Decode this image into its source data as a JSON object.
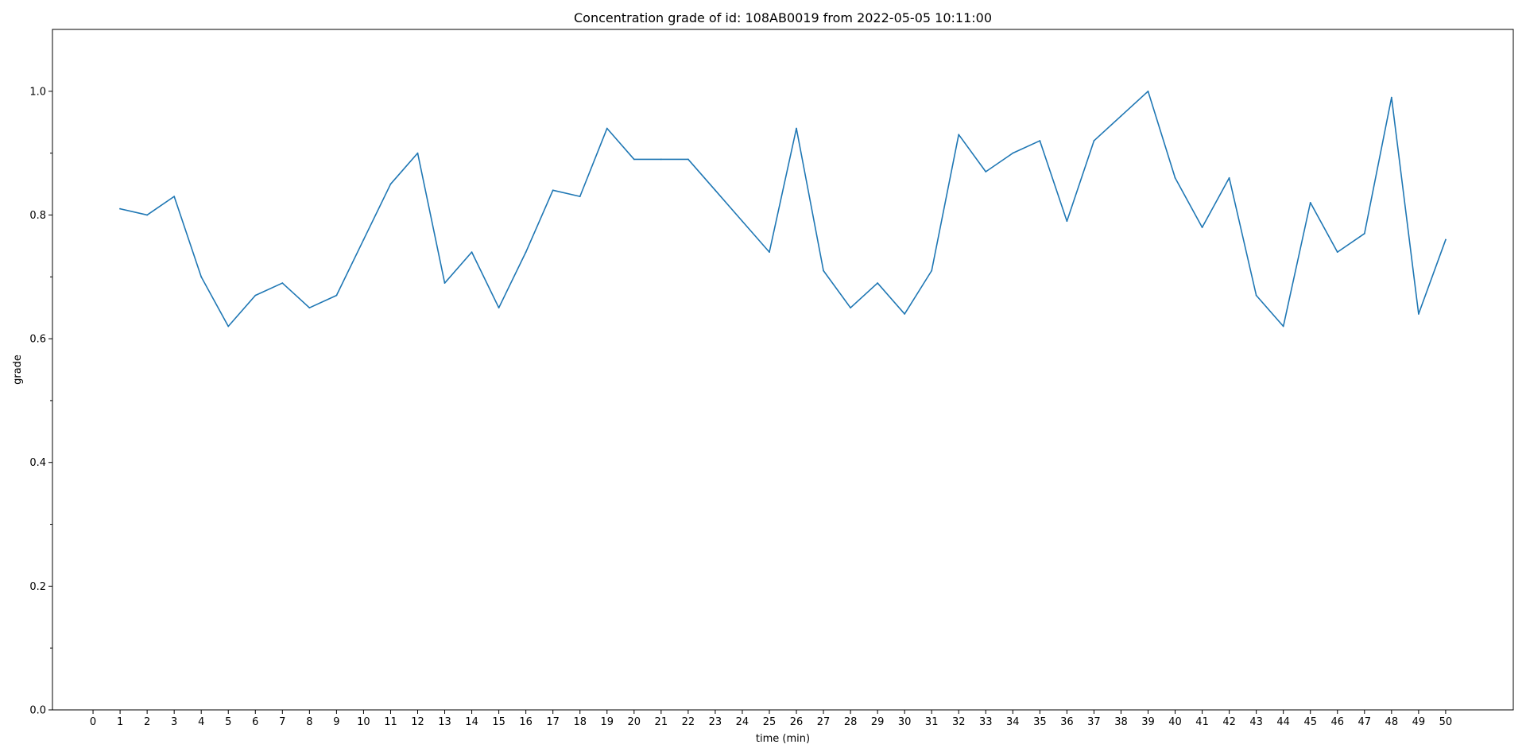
{
  "chart_data": {
    "type": "line",
    "title": "Concentration grade of id: 108AB0019 from 2022-05-05 10:11:00",
    "xlabel": "time (min)",
    "ylabel": "grade",
    "xlim": [
      -1.5,
      52.5
    ],
    "ylim": [
      0.0,
      1.1
    ],
    "x_ticks": [
      0,
      1,
      2,
      3,
      4,
      5,
      6,
      7,
      8,
      9,
      10,
      11,
      12,
      13,
      14,
      15,
      16,
      17,
      18,
      19,
      20,
      21,
      22,
      23,
      24,
      25,
      26,
      27,
      28,
      29,
      30,
      31,
      32,
      33,
      34,
      35,
      36,
      37,
      38,
      39,
      40,
      41,
      42,
      43,
      44,
      45,
      46,
      47,
      48,
      49,
      50
    ],
    "y_ticks": [
      0.0,
      0.2,
      0.4,
      0.6,
      0.8,
      1.0
    ],
    "y_tick_labels": [
      "0.0",
      "0.2",
      "0.4",
      "0.6",
      "0.8",
      "1.0"
    ],
    "y_minor_ticks": [
      0.1,
      0.3,
      0.5,
      0.7,
      0.9
    ],
    "grid": false,
    "line_color": "#1f77b4",
    "series": [
      {
        "x": [
          1,
          2,
          3,
          4,
          5,
          6,
          7,
          8,
          9,
          10,
          11,
          12,
          13,
          14,
          15,
          16,
          17,
          18,
          19,
          20,
          21,
          22,
          23,
          24,
          25,
          26,
          27,
          28,
          29,
          30,
          31,
          32,
          33,
          34,
          35,
          36,
          37,
          38,
          39,
          40,
          41,
          42,
          43,
          44,
          45,
          46,
          47,
          48,
          49,
          50
        ],
        "values": [
          0.81,
          0.8,
          0.83,
          0.7,
          0.62,
          0.67,
          0.69,
          0.65,
          0.67,
          0.76,
          0.85,
          0.9,
          0.69,
          0.74,
          0.65,
          0.74,
          0.84,
          0.83,
          0.94,
          0.89,
          0.89,
          0.89,
          0.84,
          0.79,
          0.74,
          0.94,
          0.71,
          0.65,
          0.69,
          0.64,
          0.71,
          0.93,
          0.87,
          0.9,
          0.92,
          0.79,
          0.92,
          0.96,
          1.0,
          0.86,
          0.78,
          0.86,
          0.67,
          0.62,
          0.82,
          0.74,
          0.77,
          0.99,
          0.64,
          0.76
        ]
      }
    ]
  }
}
